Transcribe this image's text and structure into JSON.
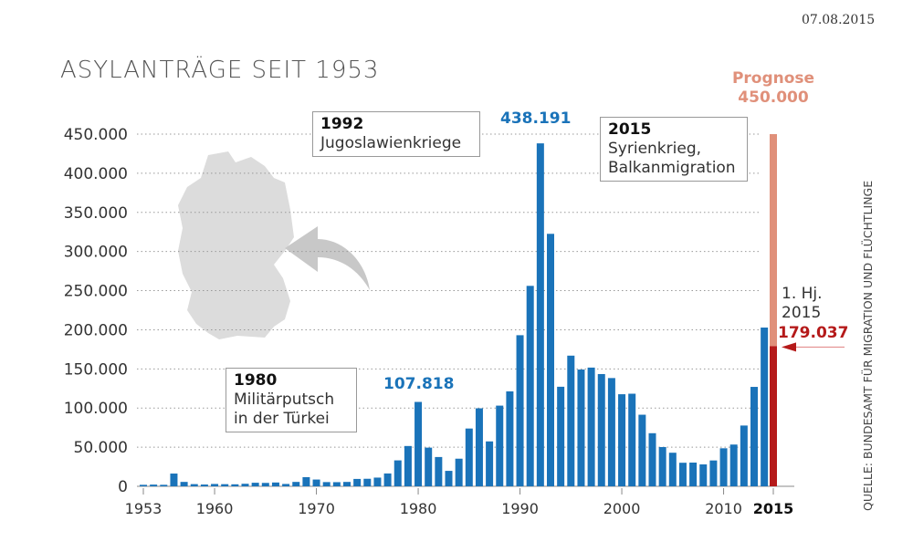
{
  "date": "07.08.2015",
  "source": "QUELLE: BUNDESAMT FÜR MIGRATION UND FLÜCHTLINGE",
  "colors": {
    "bar": "#1a73b9",
    "forecast": "#e0907a",
    "half_year": "#b51a1a",
    "map": "#dcdcdc"
  },
  "chart_data": {
    "type": "bar",
    "title": "ASYLANTRÄGE SEIT 1953",
    "xlabel": "",
    "ylabel": "",
    "ylim": [
      0,
      450000
    ],
    "yticks": [
      0,
      50000,
      100000,
      150000,
      200000,
      250000,
      300000,
      350000,
      400000,
      450000
    ],
    "ytick_labels": [
      "0",
      "50.000",
      "100.000",
      "150.000",
      "200.000",
      "250.000",
      "300.000",
      "350.000",
      "400.000",
      "450.000"
    ],
    "xtick_labels": [
      "1953",
      "1960",
      "1970",
      "1980",
      "1990",
      "2000",
      "2010",
      "2015"
    ],
    "xticks": [
      1953,
      1960,
      1970,
      1980,
      1990,
      2000,
      2010,
      2015
    ],
    "years": [
      1953,
      1954,
      1955,
      1956,
      1957,
      1958,
      1959,
      1960,
      1961,
      1962,
      1963,
      1964,
      1965,
      1966,
      1967,
      1968,
      1969,
      1970,
      1971,
      1972,
      1973,
      1974,
      1975,
      1976,
      1977,
      1978,
      1979,
      1980,
      1981,
      1982,
      1983,
      1984,
      1985,
      1986,
      1987,
      1988,
      1989,
      1990,
      1991,
      1992,
      1993,
      1994,
      1995,
      1996,
      1997,
      1998,
      1999,
      2000,
      2001,
      2002,
      2003,
      2004,
      2005,
      2006,
      2007,
      2008,
      2009,
      2010,
      2011,
      2012,
      2013,
      2014
    ],
    "values": [
      1906,
      2174,
      1926,
      16284,
      5622,
      2785,
      2267,
      2980,
      2722,
      2550,
      3238,
      4542,
      4337,
      4868,
      2992,
      5608,
      11664,
      8645,
      5388,
      5289,
      5595,
      9424,
      9627,
      11123,
      16410,
      33136,
      51493,
      107818,
      49391,
      37423,
      19737,
      35278,
      73832,
      99650,
      57379,
      103076,
      121318,
      193063,
      256112,
      438191,
      322599,
      127210,
      166951,
      149193,
      151700,
      143429,
      138319,
      117648,
      118306,
      91471,
      67848,
      50152,
      42908,
      30100,
      30303,
      28018,
      33033,
      48589,
      53347,
      77651,
      127023,
      202834
    ],
    "forecast_2015": {
      "year": 2015,
      "prognosis": 450000,
      "half_year": 179037
    },
    "annotations": [
      {
        "year_label": "1992",
        "text": "Jugoslawienkriege",
        "value_label": "438.191"
      },
      {
        "year_label": "1980",
        "text": [
          "Militärputsch",
          "in der Türkei"
        ],
        "value_label": "107.818"
      },
      {
        "year_label": "2015",
        "text": [
          "Syrienkrieg,",
          "Balkanmigration"
        ]
      }
    ],
    "prognosis_label": [
      "Prognose",
      "450.000"
    ],
    "half_year_label": [
      "1. Hj.",
      "2015"
    ],
    "half_year_value": "179.037"
  }
}
